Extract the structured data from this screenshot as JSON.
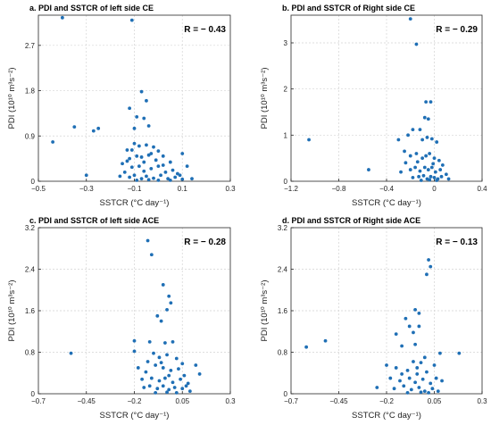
{
  "chart_data": [
    {
      "type": "scatter",
      "title": "a. PDI and SSTCR of left side CE",
      "annotation": "R = − 0.43",
      "xlabel": "SSTCR (°C day⁻¹)",
      "ylabel": "PDI (10¹⁰ m³s⁻²)",
      "xlim": [
        -0.5,
        0.3
      ],
      "ylim": [
        0,
        3.3
      ],
      "xticks": [
        -0.5,
        -0.3,
        -0.1,
        0.1,
        0.3
      ],
      "xtick_labels": [
        "−0.5",
        "−0.3",
        "−0.1",
        "0.1",
        "0.3"
      ],
      "yticks": [
        0,
        0.9,
        1.8,
        2.7
      ],
      "ytick_labels": [
        "0",
        "0.9",
        "1.8",
        "2.7"
      ],
      "grid": true,
      "points": [
        [
          -0.4,
          3.25
        ],
        [
          -0.11,
          3.2
        ],
        [
          -0.35,
          1.08
        ],
        [
          -0.44,
          0.78
        ],
        [
          -0.27,
          1.0
        ],
        [
          -0.25,
          1.05
        ],
        [
          -0.3,
          0.12
        ],
        [
          -0.12,
          1.45
        ],
        [
          -0.07,
          1.78
        ],
        [
          -0.05,
          1.6
        ],
        [
          -0.09,
          1.28
        ],
        [
          -0.06,
          1.25
        ],
        [
          -0.1,
          1.05
        ],
        [
          -0.04,
          1.1
        ],
        [
          -0.13,
          0.62
        ],
        [
          -0.1,
          0.75
        ],
        [
          -0.08,
          0.7
        ],
        [
          -0.05,
          0.72
        ],
        [
          -0.02,
          0.68
        ],
        [
          0.0,
          0.6
        ],
        [
          -0.15,
          0.35
        ],
        [
          -0.12,
          0.45
        ],
        [
          -0.09,
          0.5
        ],
        [
          -0.07,
          0.48
        ],
        [
          -0.04,
          0.52
        ],
        [
          -0.01,
          0.42
        ],
        [
          0.02,
          0.5
        ],
        [
          0.05,
          0.38
        ],
        [
          0.1,
          0.55
        ],
        [
          -0.14,
          0.18
        ],
        [
          -0.11,
          0.28
        ],
        [
          -0.08,
          0.3
        ],
        [
          -0.06,
          0.2
        ],
        [
          -0.03,
          0.25
        ],
        [
          0.0,
          0.3
        ],
        [
          0.03,
          0.18
        ],
        [
          0.06,
          0.22
        ],
        [
          0.08,
          0.15
        ],
        [
          0.12,
          0.3
        ],
        [
          -0.16,
          0.1
        ],
        [
          -0.12,
          0.08
        ],
        [
          -0.1,
          0.12
        ],
        [
          -0.07,
          0.05
        ],
        [
          -0.05,
          0.1
        ],
        [
          -0.02,
          0.06
        ],
        [
          0.01,
          0.12
        ],
        [
          0.04,
          0.05
        ],
        [
          0.07,
          0.08
        ],
        [
          0.1,
          0.04
        ],
        [
          0.14,
          0.05
        ],
        [
          -0.09,
          0.02
        ],
        [
          -0.04,
          0.03
        ],
        [
          0.0,
          0.02
        ],
        [
          0.05,
          0.02
        ],
        [
          -0.13,
          0.4
        ],
        [
          -0.03,
          0.55
        ],
        [
          0.02,
          0.32
        ],
        [
          0.09,
          0.12
        ],
        [
          -0.06,
          0.38
        ],
        [
          -0.11,
          0.62
        ]
      ]
    },
    {
      "type": "scatter",
      "title": "b. PDI and SSTCR of Right side CE",
      "annotation": "R = − 0.29",
      "xlabel": "SSTCR (°C day⁻¹)",
      "ylabel": "PDI (10¹⁰ m³s⁻²)",
      "xlim": [
        -1.2,
        0.4
      ],
      "ylim": [
        0,
        3.6
      ],
      "xticks": [
        -1.2,
        -0.8,
        -0.4,
        0,
        0.4
      ],
      "xtick_labels": [
        "−1.2",
        "−0.8",
        "−0.4",
        "0",
        "0.4"
      ],
      "yticks": [
        0,
        1,
        2,
        3
      ],
      "ytick_labels": [
        "0",
        "1",
        "2",
        "3"
      ],
      "grid": true,
      "points": [
        [
          -0.2,
          3.52
        ],
        [
          -0.15,
          2.97
        ],
        [
          -0.07,
          1.72
        ],
        [
          -0.03,
          1.72
        ],
        [
          -0.08,
          1.38
        ],
        [
          -0.05,
          1.35
        ],
        [
          -1.05,
          0.9
        ],
        [
          -0.55,
          0.25
        ],
        [
          -0.3,
          0.9
        ],
        [
          -0.22,
          1.0
        ],
        [
          -0.18,
          1.12
        ],
        [
          -0.12,
          1.12
        ],
        [
          -0.1,
          0.9
        ],
        [
          -0.06,
          0.95
        ],
        [
          -0.02,
          0.92
        ],
        [
          0.02,
          0.85
        ],
        [
          -0.25,
          0.65
        ],
        [
          -0.2,
          0.55
        ],
        [
          -0.15,
          0.6
        ],
        [
          -0.1,
          0.5
        ],
        [
          -0.07,
          0.55
        ],
        [
          -0.04,
          0.6
        ],
        [
          0.0,
          0.5
        ],
        [
          0.04,
          0.45
        ],
        [
          -0.28,
          0.2
        ],
        [
          -0.2,
          0.25
        ],
        [
          -0.16,
          0.3
        ],
        [
          -0.12,
          0.22
        ],
        [
          -0.08,
          0.3
        ],
        [
          -0.05,
          0.25
        ],
        [
          -0.02,
          0.3
        ],
        [
          0.01,
          0.2
        ],
        [
          0.05,
          0.25
        ],
        [
          0.1,
          0.15
        ],
        [
          -0.18,
          0.08
        ],
        [
          -0.13,
          0.1
        ],
        [
          -0.09,
          0.12
        ],
        [
          -0.06,
          0.05
        ],
        [
          -0.03,
          0.1
        ],
        [
          0.0,
          0.08
        ],
        [
          0.03,
          0.05
        ],
        [
          0.06,
          0.1
        ],
        [
          0.12,
          0.05
        ],
        [
          -0.11,
          0.02
        ],
        [
          -0.04,
          0.03
        ],
        [
          0.02,
          0.02
        ],
        [
          -0.24,
          0.4
        ],
        [
          -0.14,
          0.42
        ],
        [
          -0.01,
          0.38
        ],
        [
          0.07,
          0.35
        ]
      ]
    },
    {
      "type": "scatter",
      "title": "c. PDI and SSTCR of left side ACE",
      "annotation": "R = − 0.28",
      "xlabel": "SSTCR (°C day⁻¹)",
      "ylabel": "PDI (10¹⁰ m³s⁻²)",
      "xlim": [
        -0.7,
        0.3
      ],
      "ylim": [
        0,
        3.2
      ],
      "xticks": [
        -0.7,
        -0.45,
        -0.2,
        0.05,
        0.3
      ],
      "xtick_labels": [
        "−0.7",
        "−0.45",
        "−0.2",
        "0.05",
        "0.3"
      ],
      "yticks": [
        0,
        0.8,
        1.6,
        2.4,
        3.2
      ],
      "ytick_labels": [
        "0",
        "0.8",
        "1.6",
        "2.4",
        "3.2"
      ],
      "grid": true,
      "points": [
        [
          -0.13,
          2.95
        ],
        [
          -0.11,
          2.68
        ],
        [
          -0.05,
          2.1
        ],
        [
          -0.02,
          1.88
        ],
        [
          -0.01,
          1.75
        ],
        [
          -0.03,
          1.62
        ],
        [
          -0.08,
          1.5
        ],
        [
          -0.06,
          1.4
        ],
        [
          -0.2,
          1.02
        ],
        [
          -0.2,
          0.82
        ],
        [
          -0.12,
          1.0
        ],
        [
          -0.04,
          0.98
        ],
        [
          0.0,
          1.0
        ],
        [
          -0.53,
          0.78
        ],
        [
          -0.1,
          0.78
        ],
        [
          -0.07,
          0.7
        ],
        [
          -0.03,
          0.75
        ],
        [
          0.02,
          0.68
        ],
        [
          0.12,
          0.55
        ],
        [
          0.14,
          0.38
        ],
        [
          -0.18,
          0.5
        ],
        [
          -0.14,
          0.42
        ],
        [
          -0.09,
          0.55
        ],
        [
          -0.05,
          0.5
        ],
        [
          -0.01,
          0.45
        ],
        [
          0.03,
          0.48
        ],
        [
          0.06,
          0.35
        ],
        [
          -0.16,
          0.28
        ],
        [
          -0.11,
          0.3
        ],
        [
          -0.07,
          0.25
        ],
        [
          -0.04,
          0.3
        ],
        [
          0.0,
          0.22
        ],
        [
          0.04,
          0.28
        ],
        [
          0.08,
          0.2
        ],
        [
          -0.15,
          0.12
        ],
        [
          -0.12,
          0.15
        ],
        [
          -0.08,
          0.1
        ],
        [
          -0.05,
          0.15
        ],
        [
          -0.02,
          0.08
        ],
        [
          0.01,
          0.12
        ],
        [
          0.05,
          0.1
        ],
        [
          0.09,
          0.05
        ],
        [
          -0.09,
          0.02
        ],
        [
          -0.03,
          0.03
        ],
        [
          0.02,
          0.02
        ],
        [
          -0.13,
          0.62
        ],
        [
          -0.06,
          0.6
        ],
        [
          0.05,
          0.58
        ],
        [
          -0.02,
          0.35
        ],
        [
          0.07,
          0.15
        ]
      ]
    },
    {
      "type": "scatter",
      "title": "d. PDI and SSTCR of Right side ACE",
      "annotation": "R = − 0.13",
      "xlabel": "SSTCR (°C day⁻¹)",
      "ylabel": "PDI (10¹⁰ m³s⁻²)",
      "xlim": [
        -0.7,
        0.3
      ],
      "ylim": [
        0,
        3.2
      ],
      "xticks": [
        -0.7,
        -0.45,
        -0.2,
        0.05,
        0.3
      ],
      "xtick_labels": [
        "−0.7",
        "−0.45",
        "−0.2",
        "0.05",
        "0.3"
      ],
      "yticks": [
        0,
        0.8,
        1.6,
        2.4,
        3.2
      ],
      "ytick_labels": [
        "0",
        "0.8",
        "1.6",
        "2.4",
        "3.2"
      ],
      "grid": true,
      "points": [
        [
          0.02,
          2.58
        ],
        [
          0.01,
          2.3
        ],
        [
          0.03,
          2.45
        ],
        [
          -0.05,
          1.62
        ],
        [
          -0.03,
          1.55
        ],
        [
          -0.1,
          1.45
        ],
        [
          -0.08,
          1.3
        ],
        [
          -0.06,
          1.18
        ],
        [
          -0.15,
          1.15
        ],
        [
          -0.03,
          1.3
        ],
        [
          -0.62,
          0.9
        ],
        [
          -0.52,
          1.02
        ],
        [
          0.18,
          0.78
        ],
        [
          0.08,
          0.78
        ],
        [
          -0.12,
          0.92
        ],
        [
          -0.05,
          0.95
        ],
        [
          0.0,
          0.7
        ],
        [
          -0.02,
          0.6
        ],
        [
          -0.2,
          0.55
        ],
        [
          -0.15,
          0.5
        ],
        [
          -0.09,
          0.45
        ],
        [
          -0.04,
          0.5
        ],
        [
          0.01,
          0.42
        ],
        [
          0.05,
          0.55
        ],
        [
          -0.18,
          0.3
        ],
        [
          -0.13,
          0.25
        ],
        [
          -0.08,
          0.3
        ],
        [
          -0.05,
          0.22
        ],
        [
          -0.01,
          0.28
        ],
        [
          0.03,
          0.2
        ],
        [
          0.06,
          0.3
        ],
        [
          -0.16,
          0.1
        ],
        [
          -0.11,
          0.15
        ],
        [
          -0.07,
          0.08
        ],
        [
          -0.03,
          0.12
        ],
        [
          0.0,
          0.05
        ],
        [
          0.04,
          0.1
        ],
        [
          0.07,
          0.05
        ],
        [
          -0.25,
          0.12
        ],
        [
          -0.09,
          0.02
        ],
        [
          -0.02,
          0.03
        ],
        [
          0.02,
          0.02
        ],
        [
          -0.12,
          0.38
        ],
        [
          -0.04,
          0.38
        ],
        [
          0.09,
          0.25
        ],
        [
          -0.06,
          0.62
        ]
      ]
    }
  ]
}
